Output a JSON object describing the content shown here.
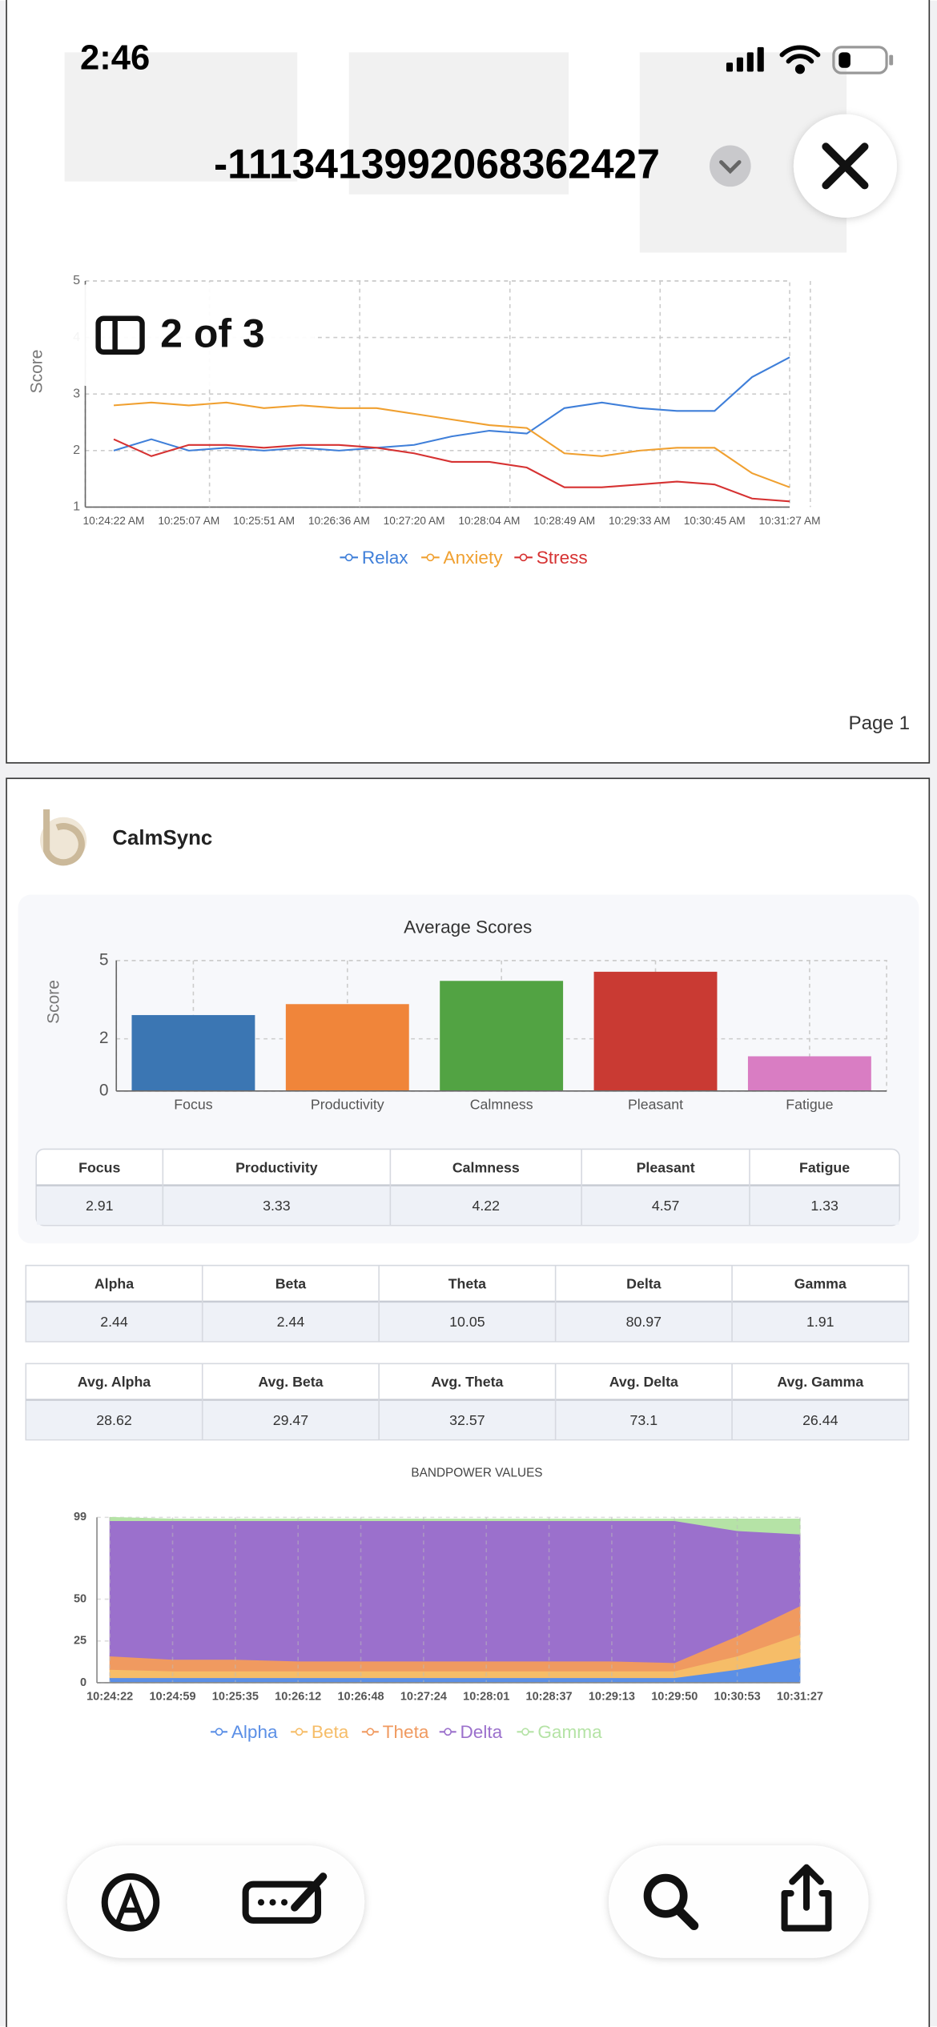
{
  "status_bar": {
    "time": "2:46"
  },
  "header": {
    "title": "-1113413992068362427"
  },
  "page_indicator": "2 of 3",
  "page_label": "Page 1",
  "brand": "CalmSync",
  "chart_data": [
    {
      "type": "line",
      "y_label": "Score",
      "categories": [
        "10:24:22 AM",
        null,
        "10:25:07 AM",
        null,
        "10:25:51 AM",
        null,
        "10:26:36 AM",
        null,
        "10:27:20 AM",
        null,
        "10:28:04 AM",
        null,
        "10:28:49 AM",
        null,
        "10:29:33 AM",
        null,
        "10:30:45 AM",
        null,
        "10:31:27 AM"
      ],
      "series": [
        {
          "name": "Relax",
          "color": "#3f7fd9",
          "values": [
            2.0,
            2.2,
            2.0,
            2.05,
            2.0,
            2.05,
            2.0,
            2.05,
            2.1,
            2.25,
            2.35,
            2.3,
            2.75,
            2.85,
            2.75,
            2.7,
            2.7,
            3.3,
            3.65
          ]
        },
        {
          "name": "Anxiety",
          "color": "#f0a030",
          "values": [
            2.8,
            2.85,
            2.8,
            2.85,
            2.75,
            2.8,
            2.75,
            2.75,
            2.65,
            2.55,
            2.45,
            2.4,
            1.95,
            1.9,
            2.0,
            2.05,
            2.05,
            1.6,
            1.35
          ]
        },
        {
          "name": "Stress",
          "color": "#d63232",
          "values": [
            2.2,
            1.9,
            2.1,
            2.1,
            2.05,
            2.1,
            2.1,
            2.05,
            1.95,
            1.8,
            1.8,
            1.7,
            1.35,
            1.35,
            1.4,
            1.45,
            1.4,
            1.15,
            1.1
          ]
        }
      ],
      "ylim": [
        1,
        5
      ],
      "yticks": [
        1,
        2,
        3,
        4,
        5
      ],
      "grid": true,
      "legend": "bottom"
    },
    {
      "type": "bar",
      "title": "Average Scores",
      "y_label": "Score",
      "categories": [
        "Focus",
        "Productivity",
        "Calmness",
        "Pleasant",
        "Fatigue"
      ],
      "values": [
        2.91,
        3.33,
        4.22,
        4.57,
        1.33
      ],
      "colors": [
        "#3b76b3",
        "#f0853a",
        "#52a343",
        "#c93a33",
        "#d97dc3"
      ],
      "ylim": [
        0,
        5
      ],
      "yticks": [
        0,
        2,
        5
      ],
      "grid": true
    },
    {
      "type": "area",
      "stacked": true,
      "title": "BANDPOWER VALUES",
      "categories": [
        "10:24:22",
        "10:24:59",
        "10:25:35",
        "10:26:12",
        "10:26:48",
        "10:27:24",
        "10:28:01",
        "10:28:37",
        "10:29:13",
        "10:29:50",
        "10:30:53",
        "10:31:27"
      ],
      "series": [
        {
          "name": "Alpha",
          "color": "#5b8fe6",
          "values": [
            3,
            3,
            3,
            3,
            3,
            3,
            3,
            3,
            3,
            3,
            8,
            15
          ]
        },
        {
          "name": "Beta",
          "color": "#f6bd68",
          "values": [
            5,
            4,
            4,
            4,
            4,
            4,
            4,
            4,
            4,
            4,
            8,
            14
          ]
        },
        {
          "name": "Theta",
          "color": "#f09a60",
          "values": [
            8,
            7,
            7,
            6,
            6,
            6,
            6,
            6,
            6,
            5,
            12,
            17
          ]
        },
        {
          "name": "Delta",
          "color": "#9b70cc",
          "values": [
            81,
            83,
            83,
            84,
            84,
            84,
            84,
            84,
            84,
            85,
            63,
            43
          ]
        },
        {
          "name": "Gamma",
          "color": "#b5e3a6",
          "values": [
            2,
            1,
            1,
            1,
            1,
            1,
            1,
            1,
            1,
            1,
            7,
            9
          ]
        }
      ],
      "ylim": [
        0,
        99
      ],
      "yticks": [
        0,
        25,
        50,
        99
      ],
      "grid": true,
      "legend": "bottom"
    }
  ],
  "band_table": {
    "headers": [
      "Alpha",
      "Beta",
      "Theta",
      "Delta",
      "Gamma"
    ],
    "values": [
      2.44,
      2.44,
      10.05,
      80.97,
      1.91
    ]
  },
  "avg_band_table": {
    "headers": [
      "Avg. Alpha",
      "Avg. Beta",
      "Avg. Theta",
      "Avg. Delta",
      "Avg. Gamma"
    ],
    "values": [
      28.62,
      29.47,
      32.57,
      73.1,
      26.44
    ]
  }
}
